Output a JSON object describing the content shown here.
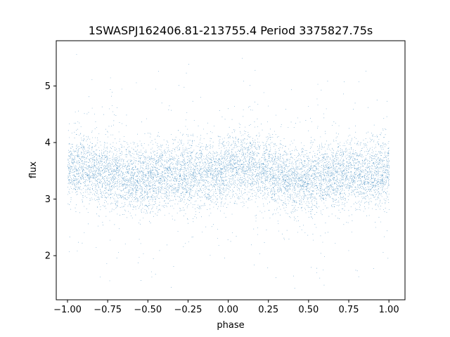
{
  "chart_data": {
    "type": "scatter",
    "title": "1SWASPJ162406.81-213755.4 Period 3375827.75s",
    "xlabel": "phase",
    "ylabel": "flux",
    "xlim": [
      -1.07,
      1.1
    ],
    "ylim": [
      1.22,
      5.8
    ],
    "xticks": [
      -1.0,
      -0.75,
      -0.5,
      -0.25,
      0.0,
      0.25,
      0.5,
      0.75,
      1.0
    ],
    "xtick_labels": [
      "−1.00",
      "−0.75",
      "−0.50",
      "−0.25",
      "0.00",
      "0.25",
      "0.50",
      "0.75",
      "1.00"
    ],
    "yticks": [
      2,
      3,
      4,
      5
    ],
    "ytick_labels": [
      "2",
      "3",
      "4",
      "5"
    ],
    "grid": false,
    "legend": "none",
    "point_color": "#1f77b4",
    "series": [
      {
        "name": "",
        "phase_range": [
          -1.0,
          1.0
        ],
        "flux_core_range": [
          2.9,
          4.2
        ],
        "flux_median": 3.5,
        "flux_full_range": [
          1.4,
          5.6
        ],
        "approx_point_count": 30000,
        "profile": [
          {
            "x": -1.0,
            "y": 3.55
          },
          {
            "x": -0.9,
            "y": 3.6
          },
          {
            "x": -0.75,
            "y": 3.5
          },
          {
            "x": -0.6,
            "y": 3.35
          },
          {
            "x": -0.5,
            "y": 3.35
          },
          {
            "x": -0.4,
            "y": 3.4
          },
          {
            "x": -0.25,
            "y": 3.45
          },
          {
            "x": -0.1,
            "y": 3.45
          },
          {
            "x": 0.0,
            "y": 3.55
          },
          {
            "x": 0.1,
            "y": 3.6
          },
          {
            "x": 0.25,
            "y": 3.5
          },
          {
            "x": 0.4,
            "y": 3.35
          },
          {
            "x": 0.5,
            "y": 3.35
          },
          {
            "x": 0.6,
            "y": 3.4
          },
          {
            "x": 0.75,
            "y": 3.45
          },
          {
            "x": 0.9,
            "y": 3.45
          },
          {
            "x": 1.0,
            "y": 3.55
          }
        ]
      }
    ]
  }
}
